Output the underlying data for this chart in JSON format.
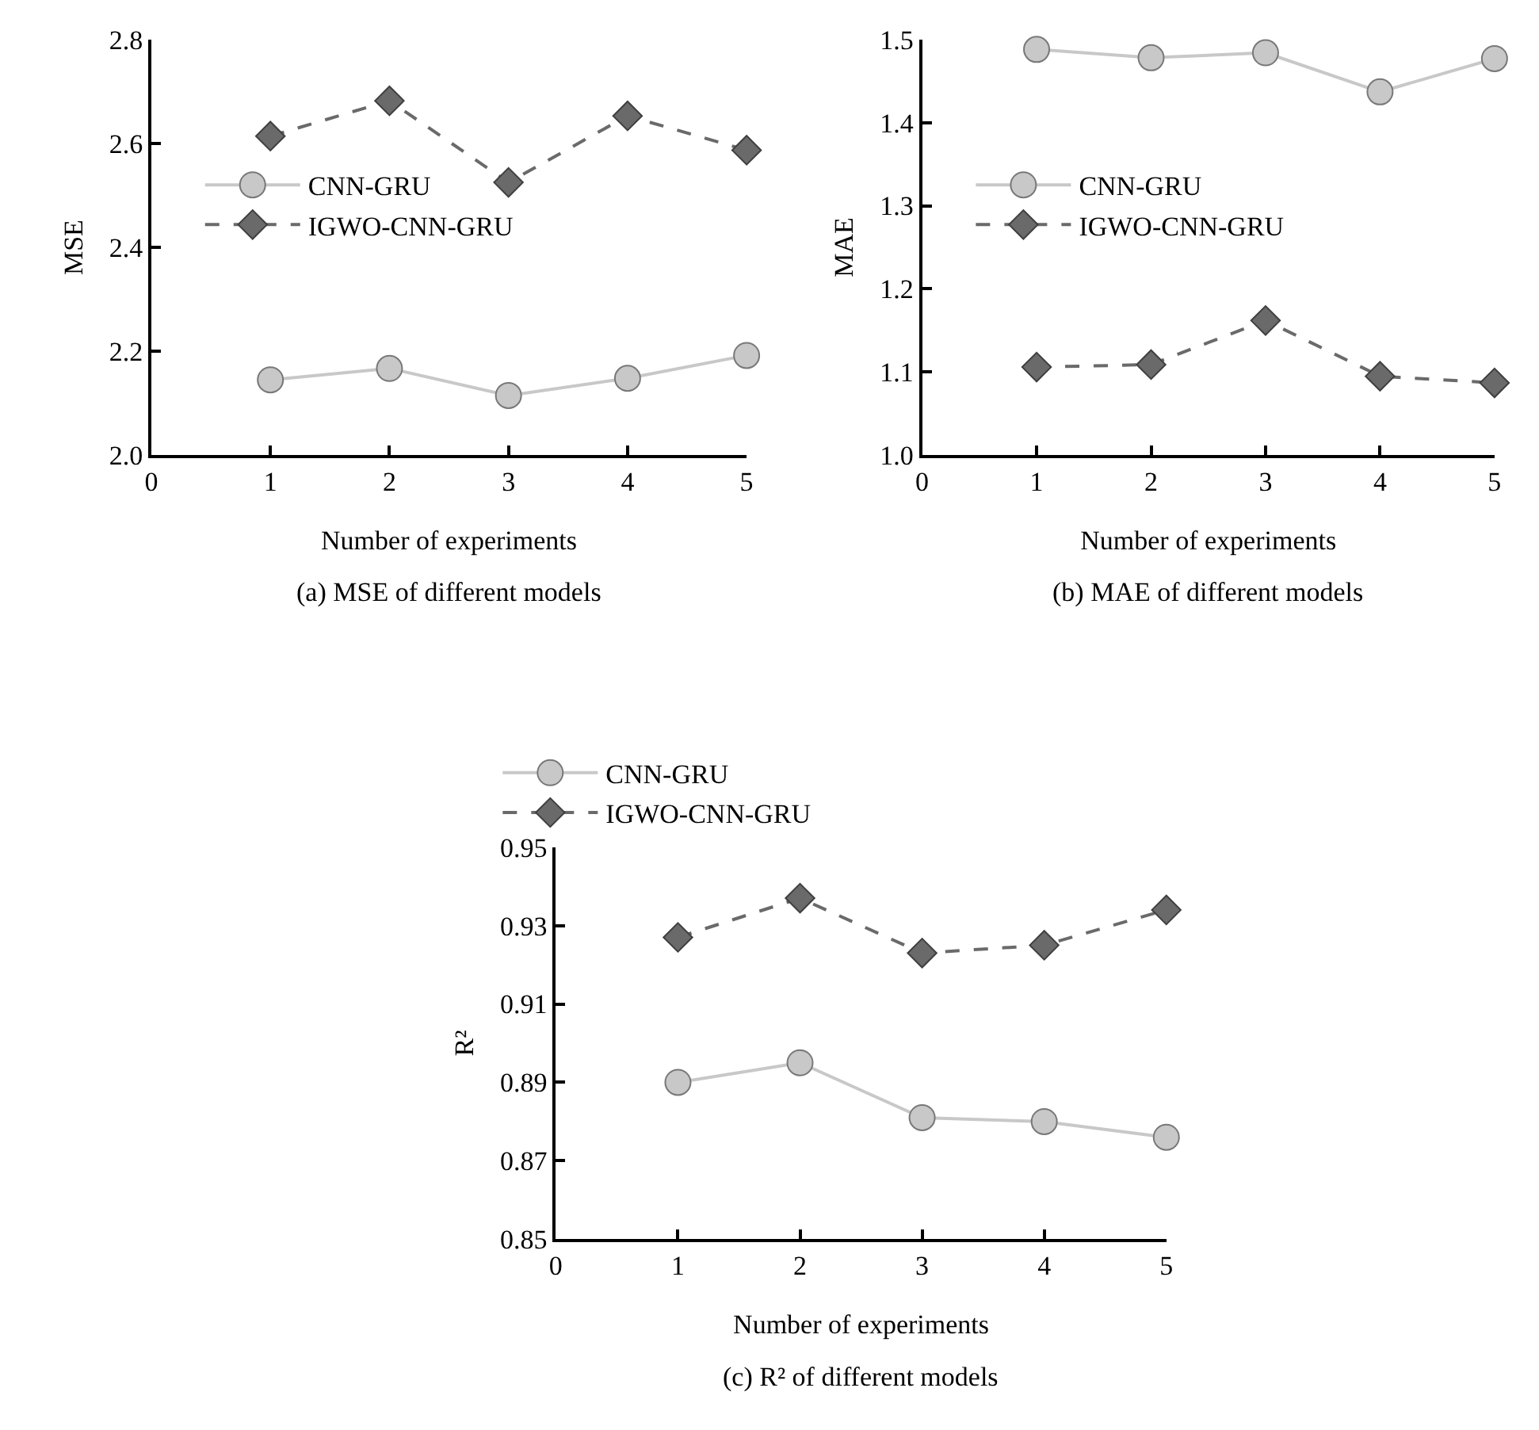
{
  "chart_data": [
    {
      "type": "line",
      "title": "(a) MSE of different models",
      "xlabel": "Number of experiments",
      "ylabel": "MSE",
      "x": [
        1,
        2,
        3,
        4,
        5
      ],
      "xlim": [
        0,
        5
      ],
      "xticks": [
        0,
        1,
        2,
        3,
        4,
        5
      ],
      "ylim": [
        2.0,
        2.8
      ],
      "yticks": [
        {
          "value": 2.0,
          "label": "2.0"
        },
        2.2,
        2.4,
        2.6,
        2.8
      ],
      "legend": "left",
      "series": [
        {
          "name": "CNN-GRU",
          "color": "#c8c8c8",
          "marker": "circle",
          "line_style": "solid",
          "values": [
            2.145,
            2.167,
            2.115,
            2.148,
            2.192
          ]
        },
        {
          "name": "IGWO-CNN-GRU",
          "color": "#6a6a6a",
          "marker": "diamond",
          "line_style": "dashed",
          "values": [
            2.614,
            2.682,
            2.525,
            2.653,
            2.587
          ]
        }
      ]
    },
    {
      "type": "line",
      "title": "(b) MAE of different models",
      "xlabel": "Number of experiments",
      "ylabel": "MAE",
      "x": [
        1,
        2,
        3,
        4,
        5
      ],
      "xlim": [
        0,
        5
      ],
      "xticks": [
        0,
        1,
        2,
        3,
        4,
        5
      ],
      "ylim": [
        1.0,
        1.5
      ],
      "yticks": [
        {
          "value": 1.0,
          "label": "1.0"
        },
        1.1,
        1.2,
        1.3,
        1.4,
        1.5
      ],
      "legend": "left",
      "series": [
        {
          "name": "CNN-GRU",
          "color": "#c8c8c8",
          "marker": "circle",
          "line_style": "solid",
          "values": [
            1.488,
            1.478,
            1.484,
            1.437,
            1.477
          ]
        },
        {
          "name": "IGWO-CNN-GRU",
          "color": "#6a6a6a",
          "marker": "diamond",
          "line_style": "dashed",
          "values": [
            1.106,
            1.109,
            1.162,
            1.095,
            1.087
          ]
        }
      ]
    },
    {
      "type": "line",
      "title": "(c) R² of different models",
      "xlabel": "Number of experiments",
      "ylabel": "R²",
      "x": [
        1,
        2,
        3,
        4,
        5
      ],
      "xlim": [
        0,
        5
      ],
      "xticks": [
        0,
        1,
        2,
        3,
        4,
        5
      ],
      "ylim": [
        0.85,
        0.95
      ],
      "yticks": [
        0.85,
        0.87,
        0.89,
        0.91,
        0.93,
        0.95
      ],
      "legend": "top",
      "series": [
        {
          "name": "CNN-GRU",
          "color": "#c8c8c8",
          "marker": "circle",
          "line_style": "solid",
          "values": [
            0.89,
            0.895,
            0.881,
            0.88,
            0.876
          ]
        },
        {
          "name": "IGWO-CNN-GRU",
          "color": "#6a6a6a",
          "marker": "diamond",
          "line_style": "dashed",
          "values": [
            0.927,
            0.937,
            0.923,
            0.925,
            0.934
          ]
        }
      ]
    }
  ]
}
